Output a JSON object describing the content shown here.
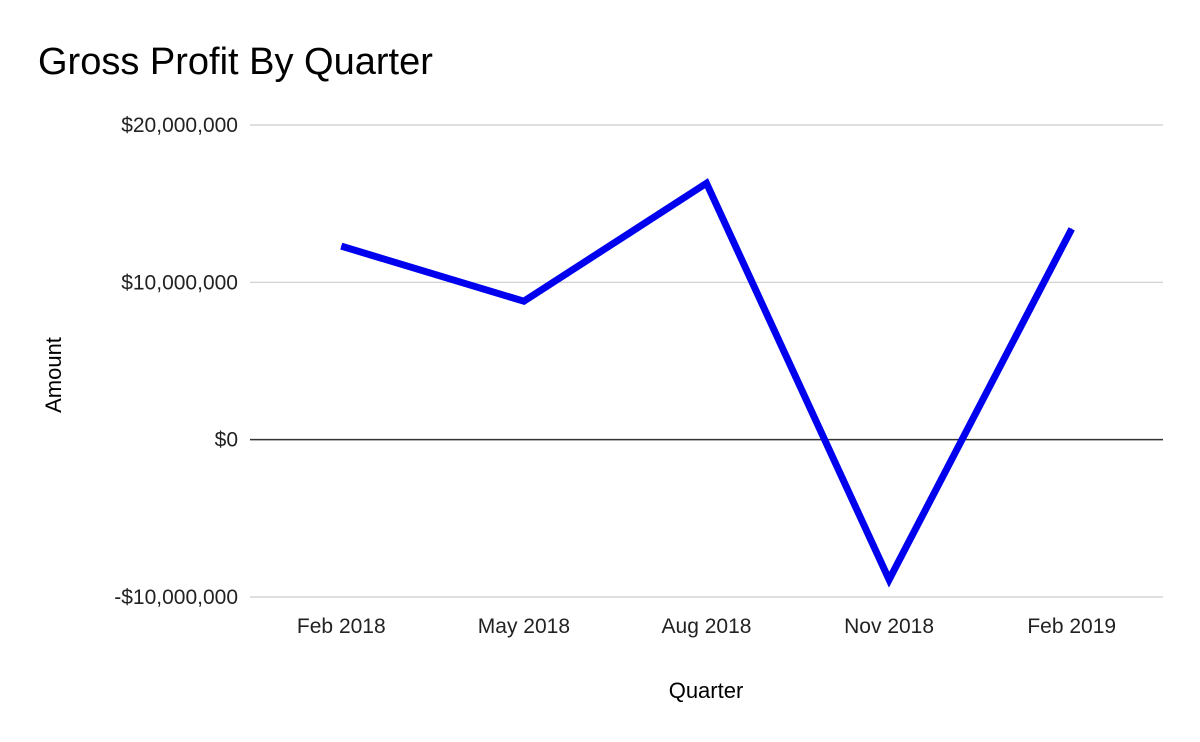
{
  "chart_data": {
    "type": "line",
    "title": "Gross Profit By Quarter",
    "xlabel": "Quarter",
    "ylabel": "Amount",
    "categories": [
      "Feb 2018",
      "May 2018",
      "Aug 2018",
      "Nov 2018",
      "Feb 2019"
    ],
    "series": [
      {
        "values": [
          12300000,
          8800000,
          16300000,
          -8900000,
          13400000
        ],
        "color": "#0000ee"
      }
    ],
    "ylim": [
      -10000000,
      20000000
    ],
    "yticks": [
      {
        "value": -10000000,
        "label": "-$10,000,000"
      },
      {
        "value": 0,
        "label": "$0"
      },
      {
        "value": 10000000,
        "label": "$10,000,000"
      },
      {
        "value": 20000000,
        "label": "$20,000,000"
      }
    ],
    "grid": true,
    "legend": "none",
    "colors": {
      "gridline": "#cccccc",
      "zero_line": "#333333"
    }
  }
}
